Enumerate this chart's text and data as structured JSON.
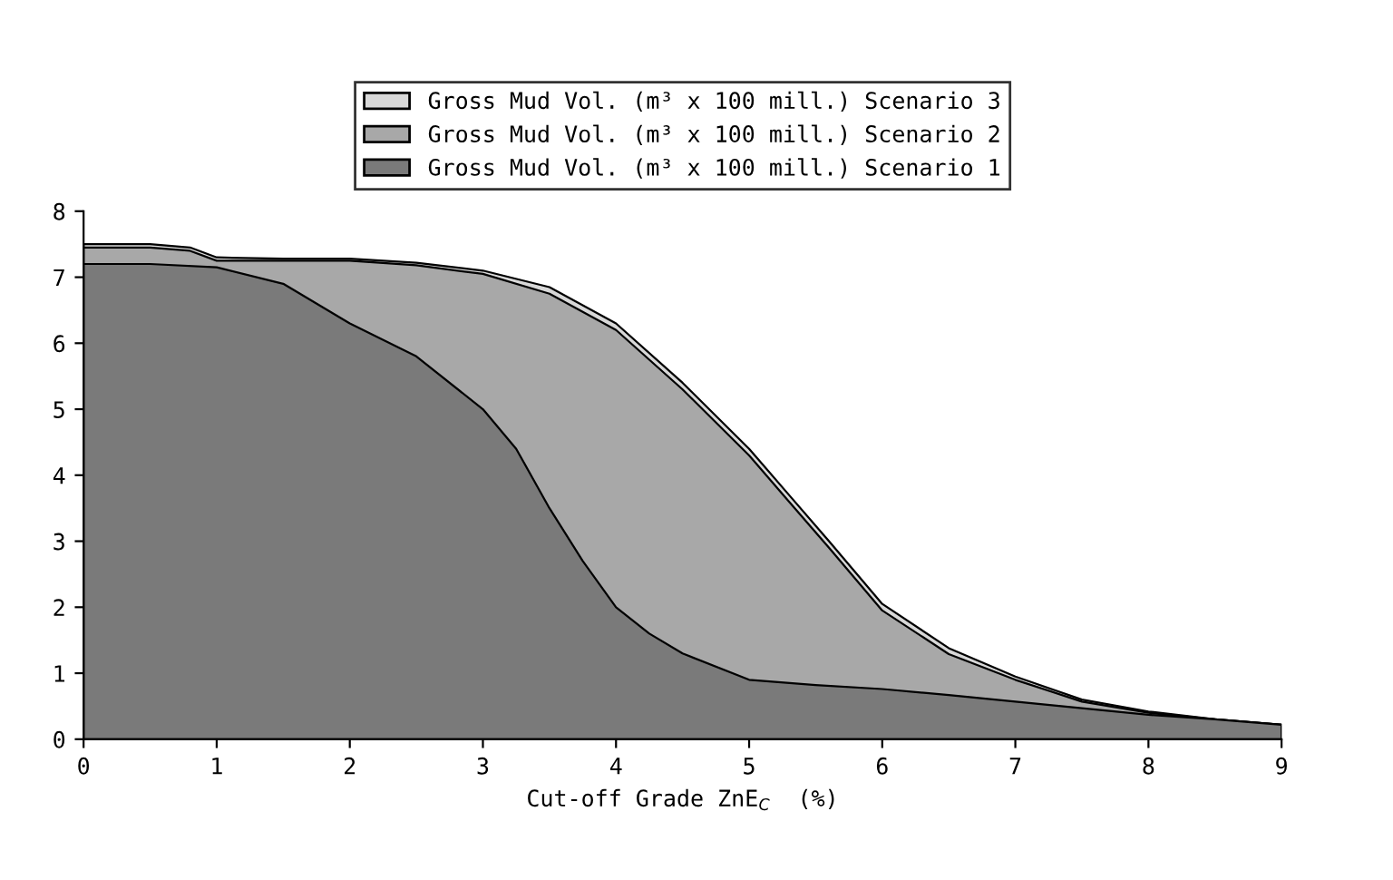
{
  "chart_data": {
    "type": "area",
    "xlabel": "Cut-off Grade ZnE$_{C}$  (%)",
    "xlim": [
      0,
      9
    ],
    "ylim": [
      0,
      8
    ],
    "xticks": [
      0,
      1,
      2,
      3,
      4,
      5,
      6,
      7,
      8,
      9
    ],
    "yticks": [
      0,
      1,
      2,
      3,
      4,
      5,
      6,
      7,
      8
    ],
    "grid": false,
    "legend": "top",
    "series": [
      {
        "name": "Gross Mud Vol. (m³ x 100 mill.) Scenario 3",
        "color": "#d8d8d8",
        "x": [
          0,
          0.5,
          0.8,
          1,
          1.5,
          2,
          2.5,
          3,
          3.5,
          4,
          4.5,
          5,
          5.3,
          5.6,
          6,
          6.5,
          7,
          7.5,
          8,
          8.5,
          9
        ],
        "values": [
          7.5,
          7.5,
          7.45,
          7.3,
          7.28,
          7.28,
          7.22,
          7.1,
          6.85,
          6.3,
          5.4,
          4.4,
          3.7,
          3.0,
          2.05,
          1.38,
          0.95,
          0.6,
          0.42,
          0.3,
          0.22
        ]
      },
      {
        "name": "Gross Mud Vol. (m³ x 100 mill.) Scenario 2",
        "color": "#a8a8a8",
        "x": [
          0,
          0.5,
          0.8,
          1,
          1.5,
          2,
          2.5,
          3,
          3.5,
          4,
          4.5,
          5,
          5.3,
          5.6,
          6,
          6.5,
          7,
          7.5,
          8,
          8.5,
          9
        ],
        "values": [
          7.45,
          7.45,
          7.4,
          7.25,
          7.25,
          7.25,
          7.18,
          7.05,
          6.75,
          6.2,
          5.3,
          4.3,
          3.6,
          2.9,
          1.95,
          1.29,
          0.9,
          0.57,
          0.4,
          0.3,
          0.22
        ]
      },
      {
        "name": "Gross Mud Vol. (m³ x 100 mill.) Scenario 1",
        "color": "#7a7a7a",
        "x": [
          0,
          0.5,
          1,
          1.5,
          2,
          2.5,
          3,
          3.25,
          3.5,
          3.75,
          4,
          4.25,
          4.5,
          5,
          5.5,
          6,
          6.5,
          7,
          7.5,
          8,
          8.5,
          9
        ],
        "values": [
          7.2,
          7.2,
          7.15,
          6.9,
          6.3,
          5.8,
          5.0,
          4.4,
          3.5,
          2.7,
          2.0,
          1.6,
          1.3,
          0.9,
          0.82,
          0.76,
          0.67,
          0.57,
          0.47,
          0.37,
          0.3,
          0.22
        ]
      }
    ]
  }
}
